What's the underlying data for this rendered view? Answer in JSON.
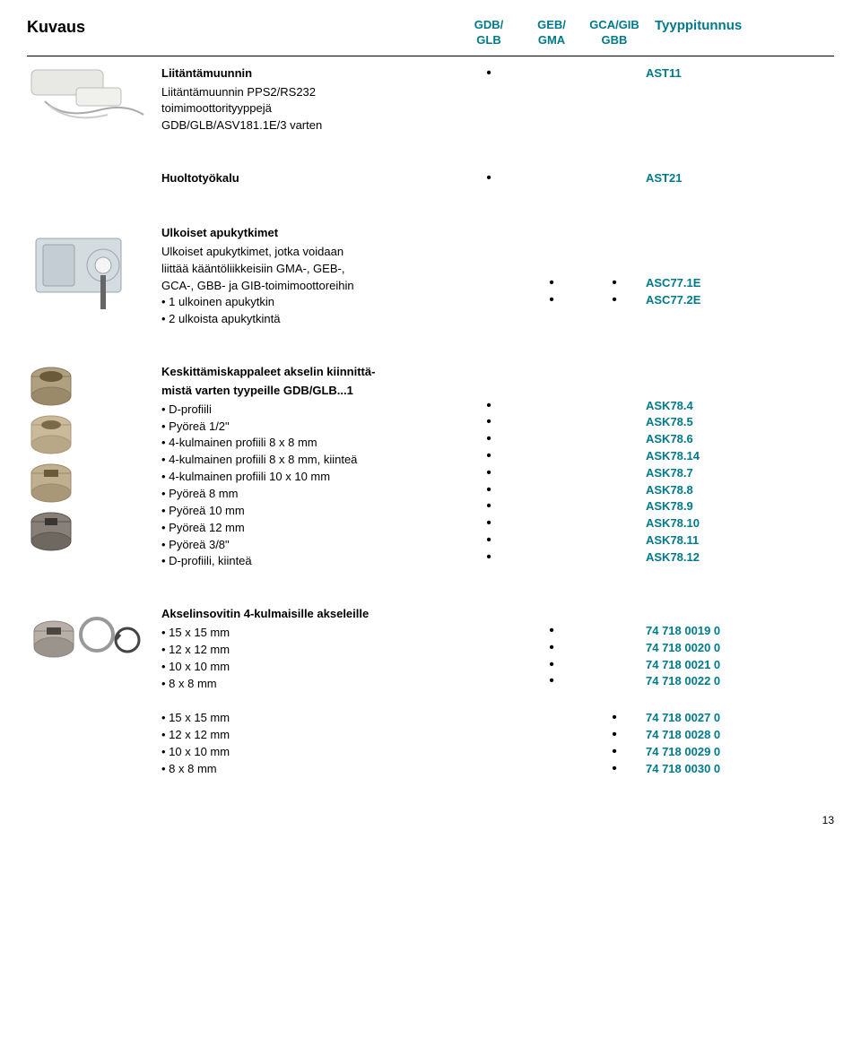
{
  "header": {
    "kuvaus": "Kuvaus",
    "col1_a": "GDB/",
    "col1_b": "GLB",
    "col2_a": "GEB/",
    "col2_b": "GMA",
    "col3_a": "GCA/GIB",
    "col3_b": "GBB",
    "tyyppi": "Tyyppitunnus"
  },
  "s1": {
    "title": "Liitäntämuunnin",
    "lines": [
      "Liitäntämuunnin PPS2/RS232",
      "toimimoottorityyppejä",
      "GDB/GLB/ASV181.1E/3 varten"
    ],
    "dots": {
      "c1": [
        "•"
      ],
      "c2": [
        ""
      ],
      "c3": [
        ""
      ]
    },
    "codes": [
      "AST11"
    ]
  },
  "s2": {
    "title": "Huoltotyökalu",
    "dots": {
      "c1": [
        "•"
      ],
      "c2": [
        ""
      ],
      "c3": [
        ""
      ]
    },
    "codes": [
      "AST21"
    ]
  },
  "s3": {
    "title": "Ulkoiset apukytkimet",
    "lines": [
      "Ulkoiset apukytkimet, jotka voidaan",
      "liittää kääntöliikkeisiin GMA-, GEB-,",
      "GCA-, GBB- ja GIB-toimimoottoreihin",
      "• 1 ulkoinen apukytkin",
      "• 2 ulkoista apukytkintä"
    ],
    "dots": {
      "c1": [
        "",
        "",
        "",
        "",
        ""
      ],
      "c2": [
        "",
        "",
        "",
        "•",
        "•"
      ],
      "c3": [
        "",
        "",
        "",
        "•",
        "•"
      ]
    },
    "codes_pad": 3,
    "codes": [
      "ASC77.1E",
      "ASC77.2E"
    ]
  },
  "s4": {
    "title_lines": [
      "Keskittämiskappaleet akselin kiinnittä-",
      "mistä varten tyypeille GDB/GLB...1"
    ],
    "lines": [
      "• D-profiili",
      "• Pyöreä 1/2\"",
      "• 4-kulmainen profiili 8 x 8 mm",
      "• 4-kulmainen profiili 8 x 8 mm, kiinteä",
      "• 4-kulmainen profiili 10 x 10 mm",
      "• Pyöreä 8 mm",
      "• Pyöreä 10 mm",
      "• Pyöreä 12 mm",
      "• Pyöreä 3/8\"",
      "• D-profiili, kiinteä"
    ],
    "dots": {
      "c1": [
        "•",
        "•",
        "•",
        "•",
        "•",
        "•",
        "•",
        "•",
        "•",
        "•"
      ],
      "c2": [
        "",
        "",
        "",
        "",
        "",
        "",
        "",
        "",
        "",
        ""
      ],
      "c3": [
        "",
        "",
        "",
        "",
        "",
        "",
        "",
        "",
        "",
        ""
      ]
    },
    "codes_pad": 2,
    "codes": [
      "ASK78.4",
      "ASK78.5",
      "ASK78.6",
      "ASK78.14",
      "ASK78.7",
      "ASK78.8",
      "ASK78.9",
      "ASK78.10",
      "ASK78.11",
      "ASK78.12"
    ]
  },
  "s5": {
    "title": "Akselinsovitin 4-kulmaisille akseleille",
    "lines": [
      "• 15 x 15 mm",
      "• 12 x 12 mm",
      "• 10 x 10 mm",
      "• 8 x 8 mm"
    ],
    "dots": {
      "c1": [
        "",
        "",
        "",
        ""
      ],
      "c2": [
        "•",
        "•",
        "•",
        "•"
      ],
      "c3": [
        "",
        "",
        "",
        ""
      ]
    },
    "codes_pad": 1,
    "codes": [
      "74 718 0019 0",
      "74 718 0020 0",
      "74 718 0021 0",
      "74 718 0022 0"
    ]
  },
  "s6": {
    "lines": [
      "• 15 x 15 mm",
      "• 12 x 12 mm",
      "• 10 x 10 mm",
      "• 8 x 8 mm"
    ],
    "dots": {
      "c1": [
        "",
        "",
        "",
        ""
      ],
      "c2": [
        "",
        "",
        "",
        ""
      ],
      "c3": [
        "•",
        "•",
        "•",
        "•"
      ]
    },
    "codes_pad": 0,
    "codes": [
      "74 718 0027 0",
      "74 718 0028 0",
      "74 718 0029 0",
      "74 718 0030 0"
    ]
  },
  "page": "13"
}
